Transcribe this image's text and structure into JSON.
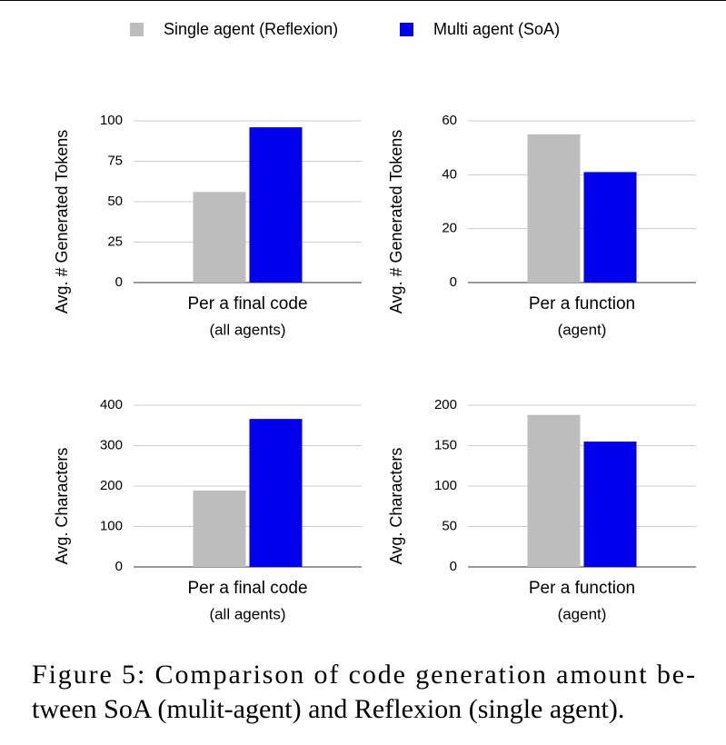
{
  "chart_data": [
    {
      "type": "bar",
      "ylabel": "Avg. # Generated Tokens",
      "categories": [
        "Per a final code"
      ],
      "xlabel": "(all agents)",
      "series": [
        {
          "name": "Single agent (Reflexion)",
          "color": "#bdbdbd",
          "values": [
            56
          ]
        },
        {
          "name": "Multi agent (SoA)",
          "color": "#0000ee",
          "values": [
            96
          ]
        }
      ],
      "ylim": [
        0,
        100
      ],
      "yticks": [
        0,
        25,
        50,
        75,
        100
      ],
      "grid": true
    },
    {
      "type": "bar",
      "ylabel": "Avg. # Generated Tokens",
      "categories": [
        "Per a function"
      ],
      "xlabel": "(agent)",
      "series": [
        {
          "name": "Single agent (Reflexion)",
          "color": "#bdbdbd",
          "values": [
            55
          ]
        },
        {
          "name": "Multi agent (SoA)",
          "color": "#0000ee",
          "values": [
            41
          ]
        }
      ],
      "ylim": [
        0,
        60
      ],
      "yticks": [
        0,
        20,
        40,
        60
      ],
      "grid": true
    },
    {
      "type": "bar",
      "ylabel": "Avg. Characters",
      "categories": [
        "Per a final code"
      ],
      "xlabel": "(all agents)",
      "series": [
        {
          "name": "Single agent (Reflexion)",
          "color": "#bdbdbd",
          "values": [
            189
          ]
        },
        {
          "name": "Multi agent (SoA)",
          "color": "#0000ee",
          "values": [
            366
          ]
        }
      ],
      "ylim": [
        0,
        400
      ],
      "yticks": [
        0,
        100,
        200,
        300,
        400
      ],
      "grid": true
    },
    {
      "type": "bar",
      "ylabel": "Avg. Characters",
      "categories": [
        "Per a function"
      ],
      "xlabel": "(agent)",
      "series": [
        {
          "name": "Single agent (Reflexion)",
          "color": "#bdbdbd",
          "values": [
            188
          ]
        },
        {
          "name": "Multi agent (SoA)",
          "color": "#0000ee",
          "values": [
            155
          ]
        }
      ],
      "ylim": [
        0,
        200
      ],
      "yticks": [
        0,
        50,
        100,
        150,
        200
      ],
      "grid": true
    }
  ],
  "caption": [
    "Figure 5: Comparison of code generation amount be-",
    "tween SoA (mulit-agent) and Reflexion (single agent)."
  ]
}
